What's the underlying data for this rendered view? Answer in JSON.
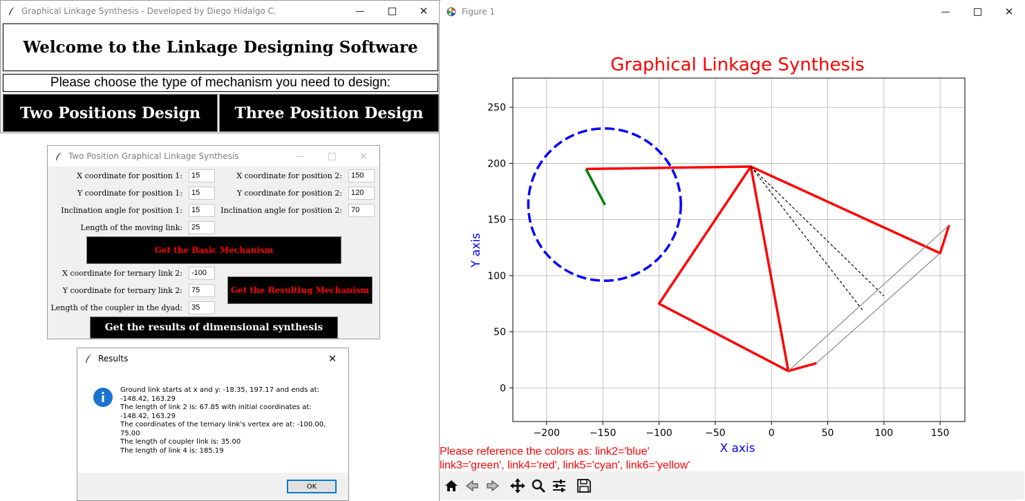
{
  "main_window": {
    "title": "Graphical Linkage Synthesis - Developed by Diego Hidalgo C.",
    "welcome": "Welcome to the Linkage Designing Software",
    "prompt": "Please choose the type of mechanism you need to design:",
    "btn_two": "Two Positions Design",
    "btn_three": "Three Position Design"
  },
  "two_pos_window": {
    "title": "Two Position Graphical Linkage Synthesis",
    "x1_label": "X coordinate for position 1:",
    "x1_value": "15",
    "x2_label": "X coordinate for position 2:",
    "x2_value": "150",
    "y1_label": "Y coordinate for position 1:",
    "y1_value": "15",
    "y2_label": "Y coordinate for position 2:",
    "y2_value": "120",
    "a1_label": "Inclination angle for position 1:",
    "a1_value": "15",
    "a2_label": "Inclination angle for position 2:",
    "a2_value": "70",
    "moving_label": "Length of the moving link:",
    "moving_value": "25",
    "btn_basic": "Get the Basic Mechanism",
    "xt_label": "X coordinate for ternary link 2:",
    "xt_value": "-100",
    "yt_label": "Y coordinate for ternary link 2:",
    "yt_value": "75",
    "coupler_label": "Length of the coupler in the dyad:",
    "coupler_value": "35",
    "btn_resulting": "Get the Resulting Mechanism",
    "btn_results": "Get the results of dimensional synthesis"
  },
  "results_window": {
    "title": "Results",
    "lines": [
      "Ground link starts at x and y: -18.35, 197.17 and ends at:",
      "-148.42, 163.29",
      "The length of link 2 is: 67.85 with initial coordinates at:",
      "-148.42, 163.29",
      "The coordinates of the ternary link's vertex are at: -100.00,",
      "75.00",
      "The length of coupler link is: 35.00",
      "The length of link 4 is: 185.19"
    ],
    "ok": "OK"
  },
  "figure_window": {
    "title": "Figure 1",
    "note_line1": "Please reference the colors as: link2='blue'",
    "note_line2": "link3='green', link4='red', link5='cyan', link6='yellow'"
  },
  "chart_data": {
    "type": "line",
    "title": "Graphical Linkage Synthesis",
    "xlabel": "X axis",
    "ylabel": "Y axis",
    "xlim": [
      -230,
      172
    ],
    "ylim": [
      -30,
      276
    ],
    "xticks": [
      -200,
      -150,
      -100,
      -50,
      0,
      50,
      100,
      150
    ],
    "yticks": [
      0,
      50,
      100,
      150,
      200,
      250
    ],
    "grid": true,
    "colors": {
      "title": "#ff0000",
      "axis_label": "#0000ff",
      "link2": "#0000ff",
      "link3": "#008000",
      "link4": "#ff0000"
    },
    "circle": {
      "cx": -148.42,
      "cy": 163.29,
      "r": 67.85,
      "color": "#0000ff",
      "dashed": true
    },
    "series": [
      {
        "color": "#ff0000",
        "width": 3.5,
        "x": [
          -165,
          -18.35,
          150,
          -18.35,
          15,
          40
        ],
        "y": [
          195,
          197.17,
          120,
          197.17,
          15,
          22
        ]
      },
      {
        "color": "#ff0000",
        "width": 3.5,
        "x": [
          -18.35,
          -100,
          15
        ],
        "y": [
          197.17,
          75,
          15
        ]
      },
      {
        "color": "#ff0000",
        "width": 3.5,
        "x": [
          150,
          158
        ],
        "y": [
          120,
          145
        ]
      },
      {
        "color": "#008000",
        "width": 3.5,
        "x": [
          -165,
          -148
        ],
        "y": [
          195,
          163
        ]
      },
      {
        "color": "#000000",
        "width": 1.2,
        "dash": "4,3",
        "x": [
          -18.35,
          82
        ],
        "y": [
          197.17,
          68
        ]
      },
      {
        "color": "#000000",
        "width": 1.2,
        "dash": "4,3",
        "x": [
          -18.35,
          100
        ],
        "y": [
          197.17,
          82
        ]
      },
      {
        "color": "#888888",
        "width": 1.2,
        "x": [
          15,
          158
        ],
        "y": [
          15,
          145
        ]
      },
      {
        "color": "#888888",
        "width": 1.2,
        "x": [
          40,
          150
        ],
        "y": [
          22,
          120
        ]
      }
    ]
  }
}
